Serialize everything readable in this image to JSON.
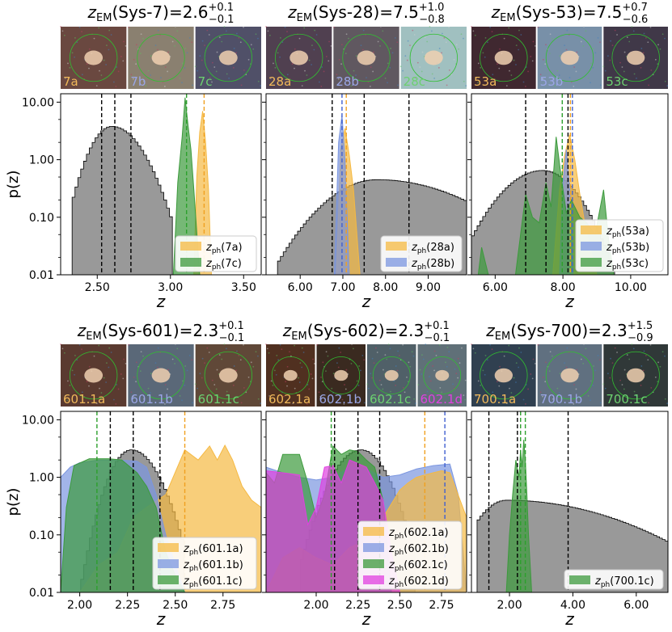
{
  "chart_data": {
    "type": "multi-panel",
    "ylabel": "p(z)",
    "xlabel": "z",
    "yscale": "log",
    "ylim": [
      0.01,
      14
    ],
    "y_ticks": [
      "10.00",
      "1.00",
      "0.10",
      "0.01"
    ],
    "panels": [
      {
        "id": "sys7",
        "title_main": "z_EM(Sys-7)=2.6",
        "title_pre": "z",
        "title_sub": "EM",
        "title_mid": "(Sys-7)=2.6",
        "title_sup": "+0.1",
        "title_inf": "−0.1",
        "thumbs": [
          {
            "label": "7a",
            "color": "#f0b85a",
            "bg": "#6a4840"
          },
          {
            "label": "7b",
            "color": "#9aa6e6",
            "bg": "#8a8070"
          },
          {
            "label": "7c",
            "color": "#6cd070",
            "bg": "#505068"
          }
        ],
        "xlim": [
          2.25,
          3.62
        ],
        "x_ticks": [
          2.5,
          3.0,
          3.5
        ],
        "x_tick_labels": [
          "2.50",
          "3.00",
          "3.50"
        ],
        "vlines": [
          {
            "x": 2.53,
            "color": "#000"
          },
          {
            "x": 2.62,
            "color": "#000"
          },
          {
            "x": 2.73,
            "color": "#000"
          },
          {
            "x": 3.11,
            "color": "#2ca02c"
          },
          {
            "x": 3.23,
            "color": "#f0a020"
          }
        ],
        "grey": {
          "peak": 2.6,
          "peak_val": 3.8,
          "left": 2.33,
          "right": 3.02,
          "spread_l": 0.11,
          "spread_r": 0.15
        },
        "series": [
          {
            "name": "7a",
            "label": "z_ph(7a)",
            "color": "#f5b942",
            "x": [
              3.16,
              3.18,
              3.2,
              3.22,
              3.24,
              3.26,
              3.28
            ],
            "y": [
              0.01,
              0.5,
              3,
              7,
              2,
              0.3,
              0.01
            ]
          },
          {
            "name": "7c",
            "label": "z_ph(7c)",
            "color": "#3c9a3c",
            "x": [
              3.02,
              3.05,
              3.08,
              3.1,
              3.12,
              3.14,
              3.16,
              3.2
            ],
            "y": [
              0.01,
              0.4,
              2.5,
              12,
              4,
              1.5,
              0.3,
              0.01
            ]
          }
        ]
      },
      {
        "id": "sys28",
        "title_pre": "z",
        "title_sub": "EM",
        "title_mid": "(Sys-28)=7.5",
        "title_sup": "+1.0",
        "title_inf": "−0.8",
        "thumbs": [
          {
            "label": "28a",
            "color": "#f0b85a",
            "bg": "#504050"
          },
          {
            "label": "28b",
            "color": "#9aa6e6",
            "bg": "#605860"
          },
          {
            "label": "28c",
            "color": "#6cd070",
            "bg": "#a0c0c0"
          }
        ],
        "xlim": [
          5.2,
          9.9
        ],
        "x_ticks": [
          6,
          7,
          8,
          9
        ],
        "x_tick_labels": [
          "6.00",
          "7.00",
          "8.00",
          "9.00"
        ],
        "vlines": [
          {
            "x": 6.75,
            "color": "#000"
          },
          {
            "x": 7.5,
            "color": "#000"
          },
          {
            "x": 8.55,
            "color": "#000"
          },
          {
            "x": 6.98,
            "color": "#4060d0"
          },
          {
            "x": 7.08,
            "color": "#f0a020"
          }
        ],
        "grey": {
          "peak": 7.8,
          "peak_val": 0.45,
          "left": 5.45,
          "right": 9.9,
          "spread_l": 0.9,
          "spread_r": 1.6
        },
        "series": [
          {
            "name": "28a",
            "label": "z_ph(28a)",
            "color": "#f5b942",
            "x": [
              6.85,
              6.95,
              7.05,
              7.15,
              7.25,
              7.4
            ],
            "y": [
              0.01,
              1.5,
              3.5,
              1.2,
              0.3,
              0.01
            ]
          },
          {
            "name": "28b",
            "label": "z_ph(28b)",
            "color": "#7b96e0",
            "x": [
              6.8,
              6.9,
              6.98,
              7.05,
              7.15
            ],
            "y": [
              0.01,
              2,
              6,
              1,
              0.01
            ]
          }
        ]
      },
      {
        "id": "sys53",
        "title_pre": "z",
        "title_sub": "EM",
        "title_mid": "(Sys-53)=7.5",
        "title_sup": "+0.7",
        "title_inf": "−0.6",
        "thumbs": [
          {
            "label": "53a",
            "color": "#f0b85a",
            "bg": "#402830"
          },
          {
            "label": "53b",
            "color": "#9aa6e6",
            "bg": "#7890a8"
          },
          {
            "label": "53c",
            "color": "#6cd070",
            "bg": "#403848"
          }
        ],
        "xlim": [
          5.3,
          11.1
        ],
        "x_ticks": [
          6,
          8,
          10
        ],
        "x_tick_labels": [
          "6.00",
          "8.00",
          "10.00"
        ],
        "vlines": [
          {
            "x": 6.9,
            "color": "#000"
          },
          {
            "x": 7.5,
            "color": "#000"
          },
          {
            "x": 8.15,
            "color": "#000"
          },
          {
            "x": 7.98,
            "color": "#2ca02c"
          },
          {
            "x": 8.22,
            "color": "#f0a020"
          },
          {
            "x": 8.28,
            "color": "#4060d0"
          }
        ],
        "grey": {
          "peak": 7.4,
          "peak_val": 0.65,
          "left": 5.3,
          "right": 9.6,
          "spread_l": 0.9,
          "spread_r": 0.75
        },
        "series": [
          {
            "name": "53a",
            "label": "z_ph(53a)",
            "color": "#f5b942",
            "x": [
              7.7,
              7.9,
              8.05,
              8.2,
              8.35,
              8.5,
              8.7,
              9.0
            ],
            "y": [
              0.01,
              0.3,
              1.2,
              2.7,
              1.0,
              0.25,
              0.05,
              0.01
            ]
          },
          {
            "name": "53b",
            "label": "z_ph(53b)",
            "color": "#7b96e0",
            "x": [
              7.9,
              8.0,
              8.1,
              8.2,
              8.3
            ],
            "y": [
              0.01,
              0.4,
              1.5,
              0.3,
              0.01
            ]
          },
          {
            "name": "53c",
            "label": "z_ph(53c)",
            "color": "#3c9a3c",
            "x": [
              5.5,
              5.6,
              5.8,
              6.6,
              6.9,
              7.1,
              7.3,
              7.5,
              7.65,
              7.8,
              7.95,
              8.1,
              8.25,
              8.5,
              8.7,
              8.95,
              9.2,
              9.35,
              9.5
            ],
            "y": [
              0.01,
              0.03,
              0.01,
              0.01,
              0.25,
              0.1,
              0.08,
              0.4,
              0.15,
              2.5,
              0.5,
              0.12,
              0.2,
              0.1,
              0.08,
              0.05,
              0.3,
              0.04,
              0.01
            ]
          }
        ]
      },
      {
        "id": "sys601",
        "title_pre": "z",
        "title_sub": "EM",
        "title_mid": "(Sys-601)=2.3",
        "title_sup": "+0.1",
        "title_inf": "−0.1",
        "thumbs": [
          {
            "label": "601.1a",
            "color": "#f0b85a",
            "bg": "#5a3a30"
          },
          {
            "label": "601.1b",
            "color": "#9aa6e6",
            "bg": "#5a6878"
          },
          {
            "label": "601.1c",
            "color": "#6cd070",
            "bg": "#604838"
          }
        ],
        "xlim": [
          1.9,
          2.95
        ],
        "x_ticks": [
          2.0,
          2.25,
          2.5,
          2.75
        ],
        "x_tick_labels": [
          "2.00",
          "2.25",
          "2.50",
          "2.75"
        ],
        "vlines": [
          {
            "x": 2.09,
            "color": "#2ca02c"
          },
          {
            "x": 2.16,
            "color": "#000"
          },
          {
            "x": 2.28,
            "color": "#000"
          },
          {
            "x": 2.42,
            "color": "#000"
          },
          {
            "x": 2.55,
            "color": "#f0a020"
          }
        ],
        "grey": {
          "peak": 2.27,
          "peak_val": 3.0,
          "left": 2.0,
          "right": 2.55,
          "spread_l": 0.08,
          "spread_r": 0.1
        },
        "series": [
          {
            "name": "601.1a",
            "label": "z_ph(601.1a)",
            "color": "#f5b942",
            "x": [
              1.9,
              2.0,
              2.1,
              2.2,
              2.28,
              2.35,
              2.45,
              2.55,
              2.62,
              2.68,
              2.72,
              2.76,
              2.8,
              2.85,
              2.9,
              2.95
            ],
            "y": [
              0.01,
              0.01,
              0.03,
              0.05,
              0.2,
              0.3,
              0.5,
              3.0,
              2.0,
              3.5,
              2.0,
              3.6,
              2.0,
              0.7,
              0.4,
              0.3
            ]
          },
          {
            "name": "601.1b",
            "label": "z_ph(601.1b)",
            "color": "#7b96e0",
            "x": [
              1.9,
              1.95,
              2.0,
              2.1,
              2.2,
              2.3,
              2.35,
              2.4,
              2.45,
              2.5,
              2.55
            ],
            "y": [
              1.0,
              1.5,
              1.8,
              2.0,
              2.0,
              1.9,
              1.5,
              0.5,
              0.1,
              0.03,
              0.01
            ]
          },
          {
            "name": "601.1c",
            "label": "z_ph(601.1c)",
            "color": "#3c9a3c",
            "x": [
              1.9,
              1.93,
              1.97,
              2.05,
              2.15,
              2.22,
              2.3,
              2.35,
              2.4,
              2.45,
              2.5,
              2.55
            ],
            "y": [
              0.01,
              0.3,
              1.6,
              2.1,
              2.1,
              2.0,
              1.2,
              0.7,
              0.3,
              0.05,
              0.02,
              0.01
            ]
          }
        ]
      },
      {
        "id": "sys602",
        "title_pre": "z",
        "title_sub": "EM",
        "title_mid": "(Sys-602)=2.3",
        "title_sup": "+0.1",
        "title_inf": "−0.1",
        "thumbs": [
          {
            "label": "602.1a",
            "color": "#f0b85a",
            "bg": "#503020"
          },
          {
            "label": "602.1b",
            "color": "#9aa6e6",
            "bg": "#3a2a20"
          },
          {
            "label": "602.1c",
            "color": "#6cd070",
            "bg": "#506068"
          },
          {
            "label": "602.1d",
            "color": "#e040e0",
            "bg": "#607078"
          }
        ],
        "xlim": [
          1.7,
          2.9
        ],
        "x_ticks": [
          2.0,
          2.25,
          2.5,
          2.75
        ],
        "x_tick_labels": [
          "2.00",
          "2.25",
          "2.50",
          "2.75"
        ],
        "vlines": [
          {
            "x": 2.09,
            "color": "#2ca02c"
          },
          {
            "x": 2.11,
            "color": "#000"
          },
          {
            "x": 2.25,
            "color": "#000"
          },
          {
            "x": 2.38,
            "color": "#000"
          },
          {
            "x": 2.65,
            "color": "#f0a020"
          },
          {
            "x": 2.77,
            "color": "#4060d0"
          }
        ],
        "grey": {
          "peak": 2.27,
          "peak_val": 3.0,
          "left": 1.9,
          "right": 2.6,
          "spread_l": 0.12,
          "spread_r": 0.11
        },
        "series": [
          {
            "name": "602.1b",
            "label": "z_ph(602.1b)",
            "color": "#7b96e0",
            "x": [
              1.7,
              1.8,
              1.9,
              2.0,
              2.1,
              2.2,
              2.3,
              2.4,
              2.5,
              2.6,
              2.7,
              2.8,
              2.85,
              2.9
            ],
            "y": [
              1.5,
              1.2,
              1.0,
              0.9,
              1.0,
              1.5,
              1.4,
              1.0,
              1.1,
              1.4,
              1.6,
              1.7,
              0.5,
              0.01
            ]
          },
          {
            "name": "602.1a",
            "label": "z_ph(602.1a)",
            "color": "#f5b942",
            "x": [
              1.7,
              1.8,
              1.9,
              2.0,
              2.1,
              2.2,
              2.3,
              2.4,
              2.5,
              2.55,
              2.6,
              2.65,
              2.7,
              2.75,
              2.8,
              2.9
            ],
            "y": [
              0.01,
              0.04,
              0.06,
              0.04,
              0.03,
              0.06,
              0.08,
              0.2,
              0.6,
              0.8,
              1.0,
              1.1,
              1.2,
              1.3,
              1.2,
              0.2
            ]
          },
          {
            "name": "602.1c",
            "label": "z_ph(602.1c)",
            "color": "#3c9a3c",
            "x": [
              1.7,
              1.75,
              1.8,
              1.9,
              1.95,
              2.0,
              2.05,
              2.1,
              2.15,
              2.2,
              2.25,
              2.3,
              2.35,
              2.4,
              2.45
            ],
            "y": [
              1.2,
              0.8,
              2.5,
              2.5,
              0.8,
              0.2,
              0.5,
              3.5,
              2.5,
              3.0,
              2.8,
              2.0,
              1.5,
              0.4,
              0.01
            ]
          },
          {
            "name": "602.1d",
            "label": "z_ph(602.1d)",
            "color": "#e040e0",
            "x": [
              1.7,
              1.8,
              1.9,
              1.95,
              2.0,
              2.05,
              2.1,
              2.15,
              2.2,
              2.3,
              2.35,
              2.4,
              2.45,
              2.5
            ],
            "y": [
              1.3,
              1.2,
              1.1,
              0.15,
              0.3,
              1.5,
              1.6,
              0.8,
              2.0,
              1.5,
              0.8,
              0.4,
              0.05,
              0.01
            ]
          }
        ]
      },
      {
        "id": "sys700",
        "title_pre": "z",
        "title_sub": "EM",
        "title_mid": "(Sys-700)=2.3",
        "title_sup": "+1.5",
        "title_inf": "−0.9",
        "thumbs": [
          {
            "label": "700.1a",
            "color": "#f0b85a",
            "bg": "#304050"
          },
          {
            "label": "700.1b",
            "color": "#9aa6e6",
            "bg": "#607080"
          },
          {
            "label": "700.1c",
            "color": "#6cd070",
            "bg": "#303838"
          }
        ],
        "xlim": [
          0.8,
          7.0
        ],
        "x_ticks": [
          2,
          4,
          6
        ],
        "x_tick_labels": [
          "2.00",
          "4.00",
          "6.00"
        ],
        "vlines": [
          {
            "x": 1.35,
            "color": "#000"
          },
          {
            "x": 2.25,
            "color": "#000"
          },
          {
            "x": 3.85,
            "color": "#000"
          },
          {
            "x": 2.35,
            "color": "#2ca02c"
          },
          {
            "x": 2.5,
            "color": "#2ca02c"
          }
        ],
        "grey": {
          "peak": 1.9,
          "peak_val": 0.4,
          "left": 0.95,
          "right": 7.0,
          "spread_l": 0.7,
          "spread_r": 2.8
        },
        "series": [
          {
            "name": "700.1c",
            "label": "z_ph(700.1c)",
            "color": "#3c9a3c",
            "x": [
              1.9,
              2.0,
              2.1,
              2.2,
              2.3,
              2.35,
              2.4,
              2.45,
              2.5,
              2.55,
              2.6,
              2.7
            ],
            "y": [
              0.01,
              0.1,
              0.5,
              2.0,
              1.0,
              3.0,
              1.5,
              4.5,
              2.0,
              0.5,
              0.1,
              0.01
            ]
          }
        ]
      }
    ]
  }
}
